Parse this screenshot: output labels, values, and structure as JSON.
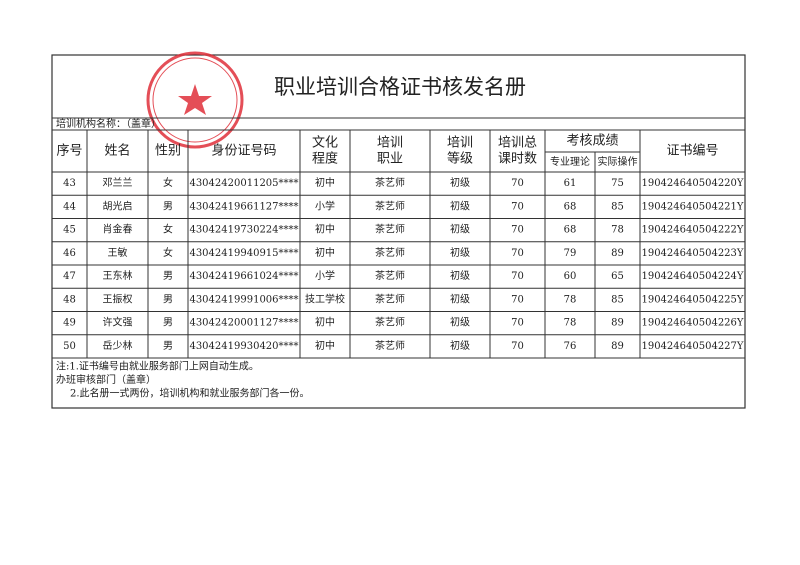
{
  "title": "职业培训合格证书核发名册",
  "institution_label": "培训机构名称：（盖章）",
  "table": {
    "headers": [
      "序号",
      "姓名",
      "性别",
      "身份证号码",
      [
        "文化",
        "程度"
      ],
      [
        "培训",
        "职业"
      ],
      [
        "培训",
        "等级"
      ],
      [
        "培训总",
        "课时数"
      ],
      {
        "group": "考核成绩",
        "sub": [
          "专业理论",
          "实际操作"
        ]
      },
      "证书编号"
    ],
    "rows": [
      [
        43,
        "邓兰兰",
        "女",
        "43042420011205****",
        "初中",
        "茶艺师",
        "初级",
        70,
        61,
        75,
        "190424640504220Y"
      ],
      [
        44,
        "胡光启",
        "男",
        "43042419661127****",
        "小学",
        "茶艺师",
        "初级",
        70,
        68,
        85,
        "190424640504221Y"
      ],
      [
        45,
        "肖金春",
        "女",
        "43042419730224****",
        "初中",
        "茶艺师",
        "初级",
        70,
        68,
        78,
        "190424640504222Y"
      ],
      [
        46,
        "王敏",
        "女",
        "43042419940915****",
        "初中",
        "茶艺师",
        "初级",
        70,
        79,
        89,
        "190424640504223Y"
      ],
      [
        47,
        "王东林",
        "男",
        "43042419661024****",
        "小学",
        "茶艺师",
        "初级",
        70,
        60,
        65,
        "190424640504224Y"
      ],
      [
        48,
        "王振权",
        "男",
        "43042419991006****",
        "技工学校",
        "茶艺师",
        "初级",
        70,
        78,
        85,
        "190424640504225Y"
      ],
      [
        49,
        "许文强",
        "男",
        "43042420001127****",
        "初中",
        "茶艺师",
        "初级",
        70,
        78,
        89,
        "190424640504226Y"
      ],
      [
        50,
        "岳少林",
        "男",
        "43042419930420****",
        "初中",
        "茶艺师",
        "初级",
        70,
        76,
        89,
        "190424640504227Y"
      ]
    ]
  },
  "notes": [
    "注:1.证书编号由就业服务部门上网自动生成。",
    "办班审核部门（盖章）",
    "2.此名册一式两份，培训机构和就业服务部门各一份。"
  ]
}
